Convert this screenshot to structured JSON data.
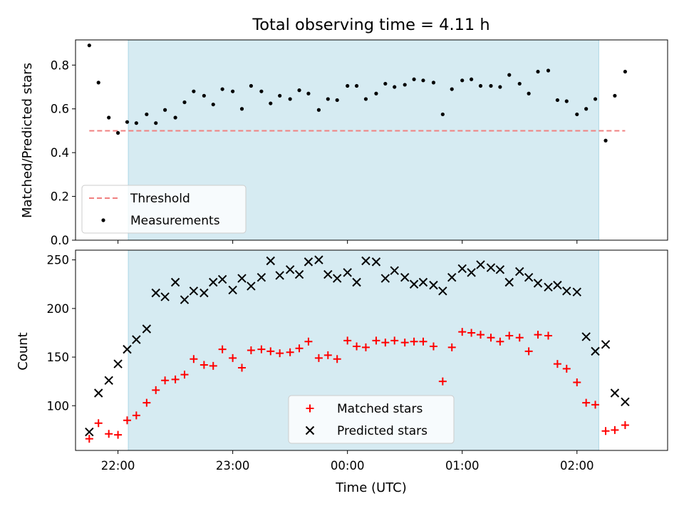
{
  "figure": {
    "title": "Total observing time = 4.11 h"
  },
  "colors": {
    "shade": "#ADD8E6",
    "threshold": "#F08080",
    "measurement": "#000000",
    "matched": "#FF0000",
    "predicted": "#000000"
  },
  "chart_data": [
    {
      "type": "scatter",
      "panel": "top",
      "ylabel": "Matched/Predicted stars",
      "xlim": [
        21.63,
        26.79
      ],
      "ylim": [
        0.0,
        0.915
      ],
      "yticks": [
        0.0,
        0.2,
        0.4,
        0.6,
        0.8
      ],
      "ytick_labels": [
        "0.0",
        "0.2",
        "0.4",
        "0.6",
        "0.8"
      ],
      "xticks": [
        22,
        23,
        24,
        25,
        26
      ],
      "shaded_span": [
        22.09,
        26.19
      ],
      "threshold": {
        "name": "Threshold",
        "y": 0.5,
        "x": [
          21.75,
          26.42
        ],
        "style": "dashed"
      },
      "legend": {
        "location": "lower left",
        "entries": [
          "Threshold",
          "Measurements"
        ]
      },
      "series": [
        {
          "name": "Measurements",
          "marker": "dot",
          "x": [
            21.75,
            21.83,
            21.92,
            22.0,
            22.08,
            22.16,
            22.25,
            22.33,
            22.41,
            22.5,
            22.58,
            22.66,
            22.75,
            22.83,
            22.91,
            23.0,
            23.08,
            23.16,
            23.25,
            23.33,
            23.41,
            23.5,
            23.58,
            23.66,
            23.75,
            23.83,
            23.91,
            24.0,
            24.08,
            24.16,
            24.25,
            24.33,
            24.41,
            24.5,
            24.58,
            24.66,
            24.75,
            24.83,
            24.91,
            25.0,
            25.08,
            25.16,
            25.25,
            25.33,
            25.41,
            25.5,
            25.58,
            25.66,
            25.75,
            25.83,
            25.91,
            26.0,
            26.08,
            26.16,
            26.25,
            26.33,
            26.42
          ],
          "y": [
            0.89,
            0.72,
            0.56,
            0.49,
            0.54,
            0.535,
            0.575,
            0.535,
            0.595,
            0.56,
            0.63,
            0.68,
            0.66,
            0.62,
            0.69,
            0.68,
            0.6,
            0.705,
            0.68,
            0.625,
            0.66,
            0.645,
            0.685,
            0.67,
            0.595,
            0.645,
            0.64,
            0.705,
            0.705,
            0.645,
            0.67,
            0.715,
            0.7,
            0.71,
            0.735,
            0.73,
            0.72,
            0.575,
            0.69,
            0.73,
            0.735,
            0.705,
            0.705,
            0.7,
            0.755,
            0.715,
            0.67,
            0.77,
            0.775,
            0.64,
            0.635,
            0.575,
            0.6,
            0.645,
            0.455,
            0.66,
            0.77
          ]
        }
      ]
    },
    {
      "type": "scatter",
      "panel": "bottom",
      "xlabel": "Time (UTC)",
      "ylabel": "Count",
      "xlim": [
        21.63,
        26.79
      ],
      "ylim": [
        54,
        260
      ],
      "yticks": [
        100,
        150,
        200,
        250
      ],
      "ytick_labels": [
        "100",
        "150",
        "200",
        "250"
      ],
      "xticks": [
        22,
        23,
        24,
        25,
        26
      ],
      "xtick_labels": [
        "22:00",
        "23:00",
        "00:00",
        "01:00",
        "02:00"
      ],
      "shaded_span": [
        22.09,
        26.19
      ],
      "legend": {
        "location": "lower center",
        "entries": [
          "Matched stars",
          "Predicted stars"
        ]
      },
      "series": [
        {
          "name": "Matched stars",
          "marker": "plus",
          "x": [
            21.75,
            21.83,
            21.92,
            22.0,
            22.08,
            22.16,
            22.25,
            22.33,
            22.41,
            22.5,
            22.58,
            22.66,
            22.75,
            22.83,
            22.91,
            23.0,
            23.08,
            23.16,
            23.25,
            23.33,
            23.41,
            23.5,
            23.58,
            23.66,
            23.75,
            23.83,
            23.91,
            24.0,
            24.08,
            24.16,
            24.25,
            24.33,
            24.41,
            24.5,
            24.58,
            24.66,
            24.75,
            24.83,
            24.91,
            25.0,
            25.08,
            25.16,
            25.25,
            25.33,
            25.41,
            25.5,
            25.58,
            25.66,
            25.75,
            25.83,
            25.91,
            26.0,
            26.08,
            26.16,
            26.25,
            26.33,
            26.42
          ],
          "y": [
            66,
            82,
            71,
            70,
            85,
            90,
            103,
            116,
            126,
            127,
            132,
            148,
            142,
            141,
            158,
            149,
            139,
            157,
            158,
            156,
            154,
            155,
            159,
            166,
            149,
            152,
            148,
            167,
            161,
            160,
            167,
            165,
            167,
            165,
            166,
            166,
            161,
            125,
            160,
            176,
            175,
            173,
            170,
            166,
            172,
            170,
            156,
            173,
            172,
            143,
            138,
            124,
            103,
            101,
            74,
            75,
            80
          ]
        },
        {
          "name": "Predicted stars",
          "marker": "cross",
          "x": [
            21.75,
            21.83,
            21.92,
            22.0,
            22.08,
            22.16,
            22.25,
            22.33,
            22.41,
            22.5,
            22.58,
            22.66,
            22.75,
            22.83,
            22.91,
            23.0,
            23.08,
            23.16,
            23.25,
            23.33,
            23.41,
            23.5,
            23.58,
            23.66,
            23.75,
            23.83,
            23.91,
            24.0,
            24.08,
            24.16,
            24.25,
            24.33,
            24.41,
            24.5,
            24.58,
            24.66,
            24.75,
            24.83,
            24.91,
            25.0,
            25.08,
            25.16,
            25.25,
            25.33,
            25.41,
            25.5,
            25.58,
            25.66,
            25.75,
            25.83,
            25.91,
            26.0,
            26.08,
            26.16,
            26.25,
            26.33,
            26.42
          ],
          "y": [
            73,
            113,
            126,
            143,
            158,
            168,
            179,
            216,
            212,
            227,
            209,
            218,
            216,
            227,
            230,
            219,
            231,
            223,
            232,
            249,
            234,
            240,
            235,
            248,
            250,
            235,
            231,
            237,
            227,
            249,
            248,
            231,
            239,
            232,
            225,
            227,
            224,
            218,
            232,
            241,
            237,
            245,
            242,
            240,
            227,
            238,
            232,
            226,
            222,
            224,
            218,
            217,
            171,
            156,
            163,
            113,
            104
          ]
        }
      ]
    }
  ]
}
